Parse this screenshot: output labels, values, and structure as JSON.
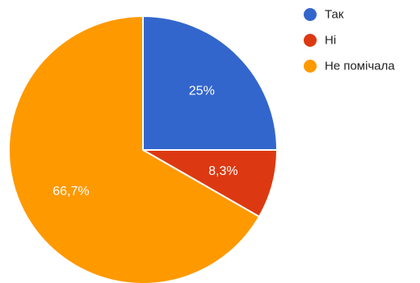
{
  "chart_data": {
    "type": "pie",
    "start_angle_deg": 90,
    "direction": "clockwise",
    "slices": [
      {
        "label": "Так",
        "value": 25,
        "value_label": "25%",
        "color": "#3366cc"
      },
      {
        "label": "Ні",
        "value": 8.3,
        "value_label": "8,3%",
        "color": "#dc3912"
      },
      {
        "label": "Не помічала",
        "value": 66.7,
        "value_label": "66,7%",
        "color": "#ff9900"
      }
    ],
    "legend_position": "top-right"
  }
}
